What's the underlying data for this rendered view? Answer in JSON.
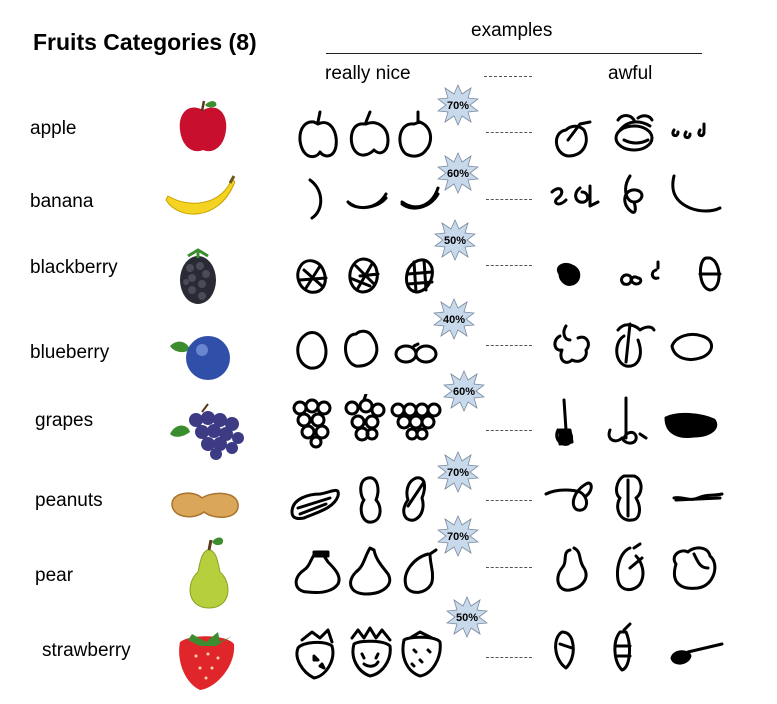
{
  "title": "Fruits Categories (8)",
  "header": {
    "examples": "examples",
    "really_nice": "really nice",
    "awful": "awful"
  },
  "badge_color": "#c9d9ec",
  "rows": [
    {
      "label": "apple",
      "percent": "70%",
      "icon": "apple-icon"
    },
    {
      "label": "banana",
      "percent": "60%",
      "icon": "banana-icon"
    },
    {
      "label": "blackberry",
      "percent": "50%",
      "icon": "blackberry-icon"
    },
    {
      "label": "blueberry",
      "percent": "40%",
      "icon": "blueberry-icon"
    },
    {
      "label": "grapes",
      "percent": "60%",
      "icon": "grapes-icon"
    },
    {
      "label": "peanuts",
      "percent": "70%",
      "icon": "peanut-icon"
    },
    {
      "label": "pear",
      "percent": "70%",
      "icon": "pear-icon"
    },
    {
      "label": "strawberry",
      "percent": "50%",
      "icon": "strawberry-icon"
    }
  ]
}
